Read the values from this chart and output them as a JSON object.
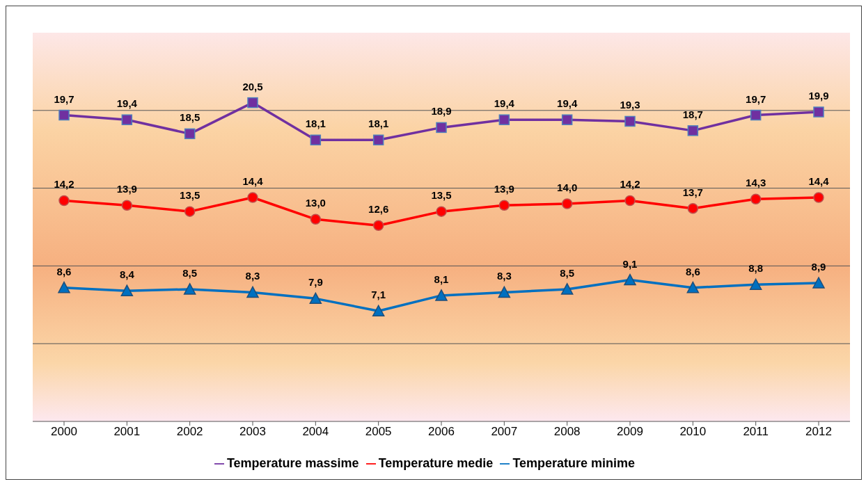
{
  "chart_data": {
    "type": "line",
    "categories": [
      "2000",
      "2001",
      "2002",
      "2003",
      "2004",
      "2005",
      "2006",
      "2007",
      "2008",
      "2009",
      "2010",
      "2011",
      "2012"
    ],
    "series": [
      {
        "name": "Temperature massime",
        "color": "#7030a0",
        "marker": "square",
        "values": [
          19.7,
          19.4,
          18.5,
          20.5,
          18.1,
          18.1,
          18.9,
          19.4,
          19.4,
          19.3,
          18.7,
          19.7,
          19.9
        ],
        "value_labels": [
          "19,7",
          "19,4",
          "18,5",
          "20,5",
          "18,1",
          "18,1",
          "18,9",
          "19,4",
          "19,4",
          "19,3",
          "18,7",
          "19,7",
          "19,9"
        ]
      },
      {
        "name": "Temperature medie",
        "color": "#ff0000",
        "marker": "circle",
        "values": [
          14.2,
          13.9,
          13.5,
          14.4,
          13.0,
          12.6,
          13.5,
          13.9,
          14.0,
          14.2,
          13.7,
          14.3,
          14.4
        ],
        "value_labels": [
          "14,2",
          "13,9",
          "13,5",
          "14,4",
          "13,0",
          "12,6",
          "13,5",
          "13,9",
          "14,0",
          "14,2",
          "13,7",
          "14,3",
          "14,4"
        ]
      },
      {
        "name": "Temperature minime",
        "color": "#0070c0",
        "marker": "triangle",
        "values": [
          8.6,
          8.4,
          8.5,
          8.3,
          7.9,
          7.1,
          8.1,
          8.3,
          8.5,
          9.1,
          8.6,
          8.8,
          8.9
        ],
        "value_labels": [
          "8,6",
          "8,4",
          "8,5",
          "8,3",
          "7,9",
          "7,1",
          "8,1",
          "8,3",
          "8,5",
          "9,1",
          "8,6",
          "8,8",
          "8,9"
        ]
      }
    ],
    "ylim": [
      0,
      25
    ],
    "tick_labels": "x",
    "grid": "y",
    "legend": "bottom",
    "line_style": "solid"
  }
}
